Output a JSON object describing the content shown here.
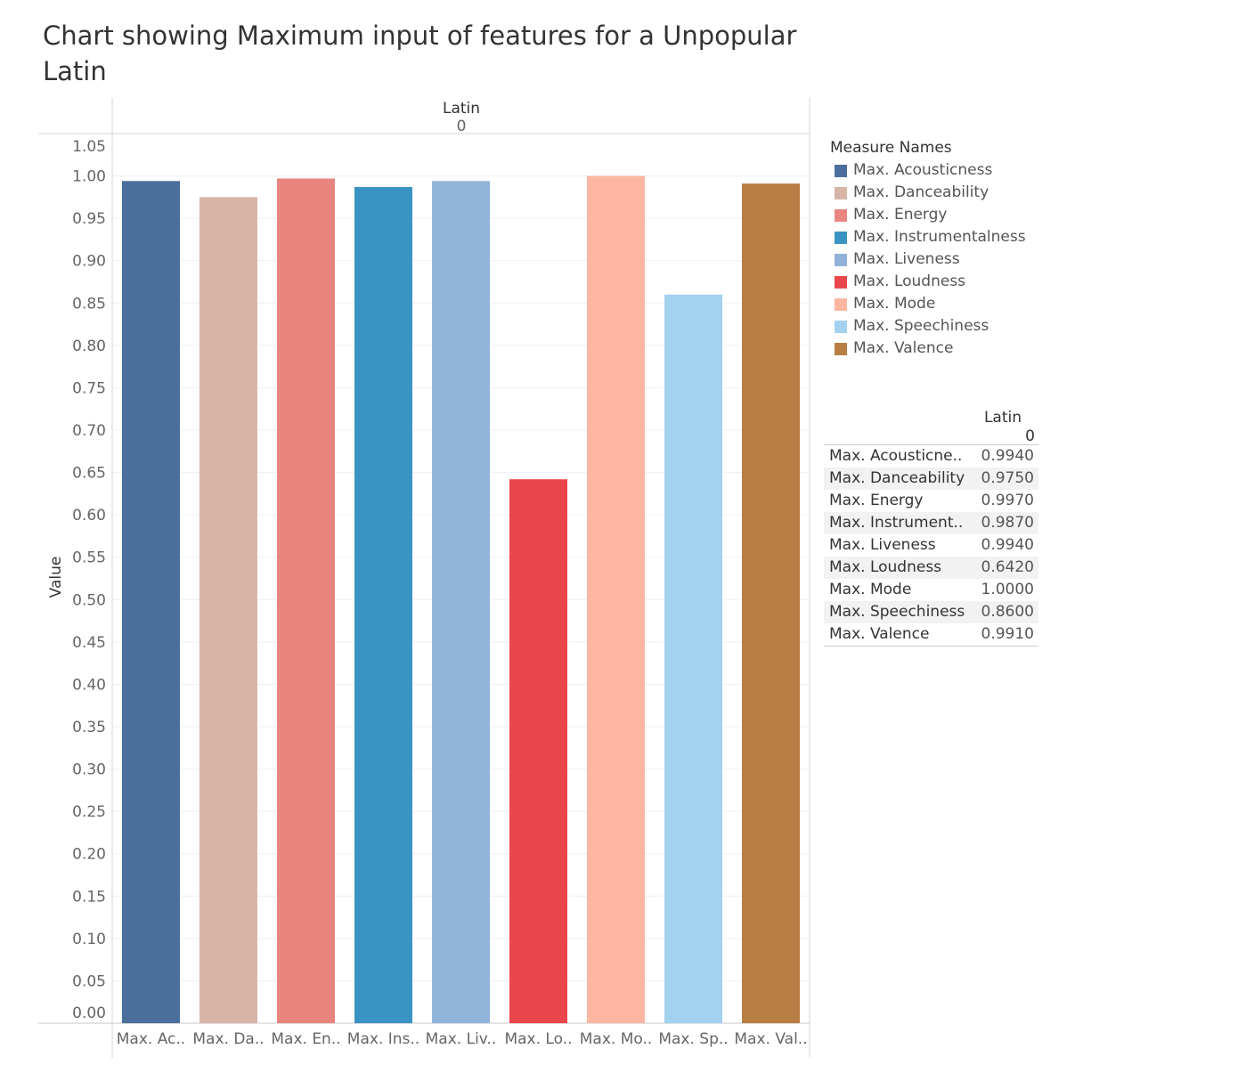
{
  "title": "Chart showing Maximum input of features for a Unpopular Latin",
  "header": {
    "label": "Latin",
    "sub": "0"
  },
  "chart_data": {
    "type": "bar",
    "title": "Chart showing Maximum input of features for a Unpopular Latin",
    "xlabel": "",
    "ylabel": "Value",
    "ylim": [
      0,
      1.05
    ],
    "yticks": [
      "0.00",
      "0.05",
      "0.10",
      "0.15",
      "0.20",
      "0.25",
      "0.30",
      "0.35",
      "0.40",
      "0.45",
      "0.50",
      "0.55",
      "0.60",
      "0.65",
      "0.70",
      "0.75",
      "0.80",
      "0.85",
      "0.90",
      "0.95",
      "1.00",
      "1.05"
    ],
    "categories": [
      "Max. Ac..",
      "Max. Da..",
      "Max. En..",
      "Max. Ins..",
      "Max. Liv..",
      "Max. Lo..",
      "Max. Mo..",
      "Max. Sp..",
      "Max. Val.."
    ],
    "values": [
      0.994,
      0.975,
      0.997,
      0.987,
      0.994,
      0.642,
      1.0,
      0.86,
      0.991
    ],
    "colors": [
      "#4a6f9c",
      "#d6b5a7",
      "#e9857f",
      "#3a94c3",
      "#92b3d9",
      "#e9464c",
      "#fcb6a2",
      "#a2d2ee",
      "#b87d43"
    ],
    "grid": true,
    "legend_position": "right"
  },
  "legend": {
    "title": "Measure Names",
    "items": [
      {
        "label": "Max. Acousticness",
        "color": "#4a6f9c"
      },
      {
        "label": "Max. Danceability",
        "color": "#d6b5a7"
      },
      {
        "label": "Max. Energy",
        "color": "#e9857f"
      },
      {
        "label": "Max. Instrumentalness",
        "color": "#3a94c3"
      },
      {
        "label": "Max. Liveness",
        "color": "#92b3d9"
      },
      {
        "label": "Max. Loudness",
        "color": "#e9464c"
      },
      {
        "label": "Max. Mode",
        "color": "#fcb6a2"
      },
      {
        "label": "Max. Speechiness",
        "color": "#a2d2ee"
      },
      {
        "label": "Max. Valence",
        "color": "#b87d43"
      }
    ]
  },
  "table": {
    "column_header": "Latin",
    "column_sub": "0",
    "rows": [
      {
        "label": "Max. Acousticne..",
        "value": "0.9940"
      },
      {
        "label": "Max. Danceability",
        "value": "0.9750"
      },
      {
        "label": "Max. Energy",
        "value": "0.9970"
      },
      {
        "label": "Max. Instrument..",
        "value": "0.9870"
      },
      {
        "label": "Max. Liveness",
        "value": "0.9940"
      },
      {
        "label": "Max. Loudness",
        "value": "0.6420"
      },
      {
        "label": "Max. Mode",
        "value": "1.0000"
      },
      {
        "label": "Max. Speechiness",
        "value": "0.8600"
      },
      {
        "label": "Max. Valence",
        "value": "0.9910"
      }
    ]
  }
}
